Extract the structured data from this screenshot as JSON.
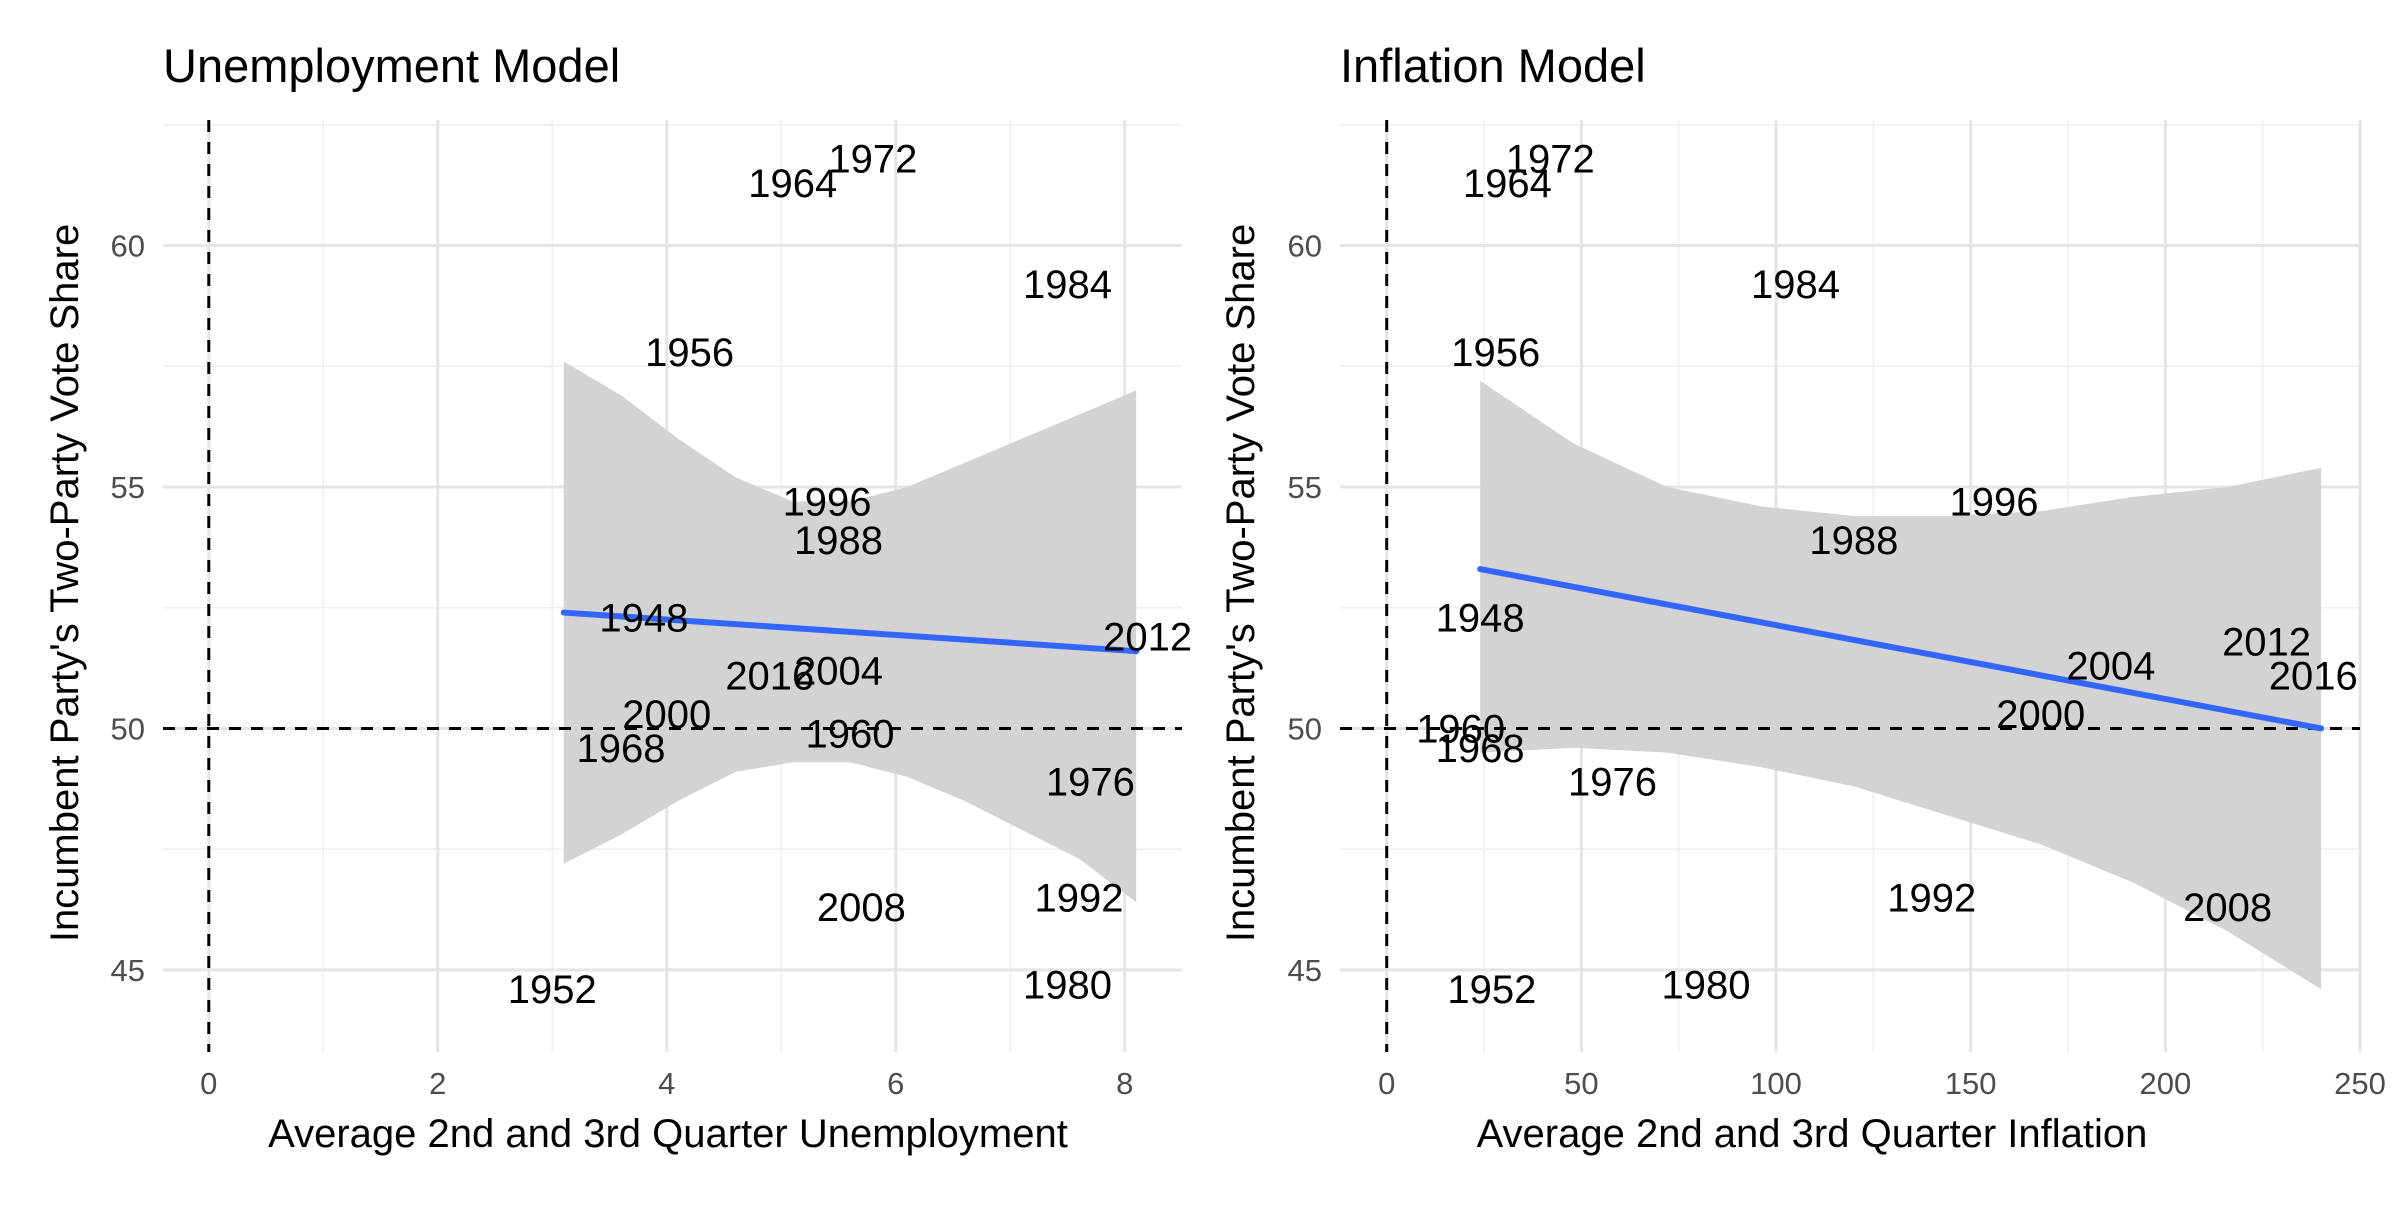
{
  "chart_data": [
    {
      "type": "scatter",
      "title": "Unemployment Model",
      "xlabel": "Average 2nd and 3rd Quarter Unemployment",
      "ylabel": "Incumbent Party's Two-Party Vote Share",
      "xlim": [
        -0.4,
        8.5
      ],
      "ylim": [
        43.3,
        62.6
      ],
      "x_ticks": [
        0,
        2,
        4,
        6,
        8
      ],
      "y_ticks": [
        45,
        50,
        55,
        60
      ],
      "grid": true,
      "reference_lines": {
        "vertical_x": 0,
        "horizontal_y": 50,
        "style": "dashed",
        "color": "#000000"
      },
      "points": [
        {
          "label": "1948",
          "x": 3.8,
          "y": 52.3
        },
        {
          "label": "1952",
          "x": 3.0,
          "y": 44.6
        },
        {
          "label": "1956",
          "x": 4.2,
          "y": 57.8
        },
        {
          "label": "1960",
          "x": 5.6,
          "y": 49.9
        },
        {
          "label": "1964",
          "x": 5.1,
          "y": 61.3
        },
        {
          "label": "1968",
          "x": 3.6,
          "y": 49.6
        },
        {
          "label": "1972",
          "x": 5.8,
          "y": 61.8
        },
        {
          "label": "1976",
          "x": 7.7,
          "y": 48.9
        },
        {
          "label": "1980",
          "x": 7.5,
          "y": 44.7
        },
        {
          "label": "1984",
          "x": 7.5,
          "y": 59.2
        },
        {
          "label": "1988",
          "x": 5.5,
          "y": 53.9
        },
        {
          "label": "1992",
          "x": 7.6,
          "y": 46.5
        },
        {
          "label": "1996",
          "x": 5.4,
          "y": 54.7
        },
        {
          "label": "2000",
          "x": 4.0,
          "y": 50.3
        },
        {
          "label": "2004",
          "x": 5.5,
          "y": 51.2
        },
        {
          "label": "2008",
          "x": 5.7,
          "y": 46.3
        },
        {
          "label": "2012",
          "x": 8.2,
          "y": 51.9
        },
        {
          "label": "2016",
          "x": 4.9,
          "y": 51.1
        }
      ],
      "fit": {
        "x": [
          3.1,
          8.1
        ],
        "y": [
          52.4,
          51.6
        ],
        "color": "#3366FF"
      },
      "ribbon": {
        "x": [
          3.1,
          3.6,
          4.1,
          4.6,
          5.1,
          5.6,
          6.1,
          6.6,
          7.1,
          7.6,
          8.1
        ],
        "upper": [
          57.6,
          56.9,
          56.0,
          55.2,
          54.7,
          54.7,
          55.0,
          55.5,
          56.0,
          56.5,
          57.0
        ],
        "lower": [
          47.2,
          47.8,
          48.5,
          49.1,
          49.3,
          49.3,
          49.0,
          48.5,
          47.9,
          47.3,
          46.4
        ],
        "color": "#D3D3D3"
      }
    },
    {
      "type": "scatter",
      "title": "Inflation Model",
      "xlabel": "Average 2nd and 3rd Quarter Inflation",
      "ylabel": "Incumbent Party's Two-Party Vote Share",
      "xlim": [
        -12,
        250
      ],
      "ylim": [
        43.3,
        62.6
      ],
      "x_ticks": [
        0,
        50,
        100,
        150,
        200,
        250
      ],
      "y_ticks": [
        45,
        50,
        55,
        60
      ],
      "grid": true,
      "reference_lines": {
        "vertical_x": 0,
        "horizontal_y": 50,
        "style": "dashed",
        "color": "#000000"
      },
      "points": [
        {
          "label": "1948",
          "x": 24,
          "y": 52.3
        },
        {
          "label": "1952",
          "x": 27,
          "y": 44.6
        },
        {
          "label": "1956",
          "x": 28,
          "y": 57.8
        },
        {
          "label": "1960",
          "x": 19,
          "y": 50.0
        },
        {
          "label": "1964",
          "x": 31,
          "y": 61.3
        },
        {
          "label": "1968",
          "x": 24,
          "y": 49.6
        },
        {
          "label": "1972",
          "x": 42,
          "y": 61.8
        },
        {
          "label": "1976",
          "x": 58,
          "y": 48.9
        },
        {
          "label": "1980",
          "x": 82,
          "y": 44.7
        },
        {
          "label": "1984",
          "x": 105,
          "y": 59.2
        },
        {
          "label": "1988",
          "x": 120,
          "y": 53.9
        },
        {
          "label": "1992",
          "x": 140,
          "y": 46.5
        },
        {
          "label": "1996",
          "x": 156,
          "y": 54.7
        },
        {
          "label": "2000",
          "x": 168,
          "y": 50.3
        },
        {
          "label": "2004",
          "x": 186,
          "y": 51.3
        },
        {
          "label": "2008",
          "x": 216,
          "y": 46.3
        },
        {
          "label": "2012",
          "x": 226,
          "y": 51.8
        },
        {
          "label": "2016",
          "x": 238,
          "y": 51.1
        }
      ],
      "fit": {
        "x": [
          24,
          240
        ],
        "y": [
          53.3,
          50.0
        ],
        "color": "#3366FF"
      },
      "ribbon": {
        "x": [
          24,
          48,
          72,
          96,
          120,
          144,
          168,
          192,
          216,
          240
        ],
        "upper": [
          57.2,
          55.9,
          55.0,
          54.6,
          54.4,
          54.4,
          54.5,
          54.8,
          55.0,
          55.4
        ],
        "lower": [
          49.5,
          49.6,
          49.5,
          49.2,
          48.8,
          48.2,
          47.6,
          46.8,
          45.8,
          44.6
        ],
        "color": "#D3D3D3"
      }
    }
  ]
}
